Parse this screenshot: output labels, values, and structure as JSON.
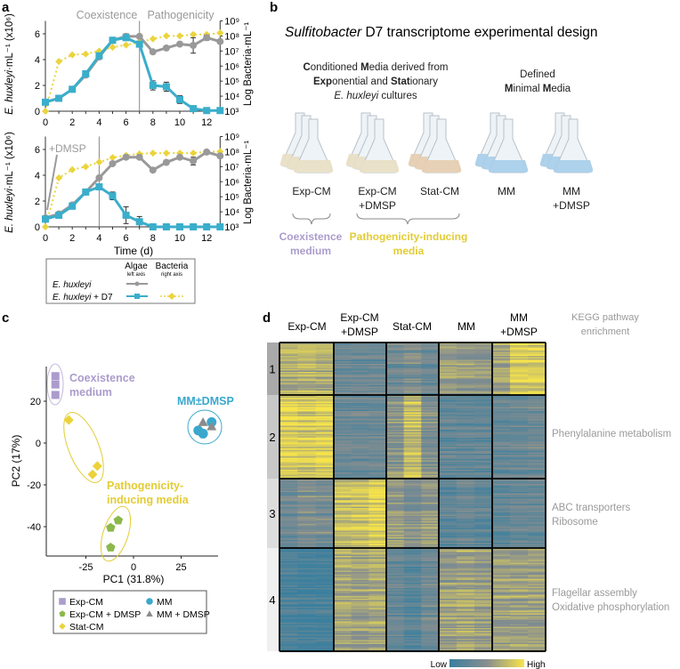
{
  "panel_labels": {
    "a": "a",
    "b": "b",
    "c": "c",
    "d": "d"
  },
  "colors": {
    "algae_gray": "#999999",
    "d7_blue": "#3aaecb",
    "bacteria_yellow": "#ebd43c",
    "coexistence_purple": "#ab9ccc",
    "pathogenicity_yellow": "#e3cc35",
    "mm_blue": "#3aa8cc",
    "exp_dmsp_green": "#8cb84c",
    "mm_dmsp_gray": "#8c8c8c",
    "heat_low": "#3b7f9e",
    "heat_mid": "#878e8f",
    "heat_high": "#f7e44a"
  },
  "panel_a": {
    "ylabel_left_italic": "E. huxleyi",
    "ylabel_left_rest": "·mL⁻¹ (x10⁶)",
    "ylabel_right": "Log Bacteria·mL⁻¹",
    "left_ticks": [
      "0",
      "2",
      "4",
      "6"
    ],
    "right_ticks": [
      "10³",
      "10⁴",
      "10⁵",
      "10⁶",
      "10⁷",
      "10⁸",
      "10⁹"
    ],
    "x_ticks": [
      "0",
      "2",
      "4",
      "6",
      "8",
      "10",
      "12"
    ],
    "legend": {
      "col_algae": "Algae",
      "col_algae_sub": "left axis",
      "col_bacteria": "Bacteria",
      "col_bacteria_sub": "right axis",
      "row1": "E. huxleyi",
      "row2_italic": "E. huxleyi",
      "row2_rest": " + D7"
    }
  },
  "chart_data": [
    {
      "type": "line",
      "panel": "a-top",
      "phase_left": "Coexistence",
      "phase_right": "Pathogenicity",
      "xlabel": "",
      "ylabel": "E. huxleyi·mL⁻¹ (x10⁶)",
      "y2label": "Log Bacteria·mL⁻¹",
      "x": [
        0,
        1,
        2,
        3,
        4,
        5,
        6,
        7,
        8,
        9,
        10,
        11,
        12,
        13
      ],
      "xlim": [
        0,
        13
      ],
      "ylim": [
        0,
        7
      ],
      "y2lim_log10": [
        3,
        9
      ],
      "vline_day": 7,
      "series": [
        {
          "name": "E. huxleyi",
          "axis": "left",
          "values": [
            0.7,
            1.0,
            1.7,
            2.8,
            4.2,
            5.5,
            5.8,
            5.8,
            4.6,
            4.9,
            5.2,
            5.1,
            5.7,
            5.4
          ],
          "errors": [
            0,
            0,
            0,
            0,
            0,
            0,
            0.2,
            0,
            0,
            0,
            0,
            0.6,
            0.2,
            0
          ]
        },
        {
          "name": "E. huxleyi + D7",
          "axis": "left",
          "values": [
            0.7,
            1.0,
            1.7,
            2.9,
            4.3,
            5.5,
            5.7,
            5.2,
            2.0,
            1.9,
            0.9,
            0.2,
            0.05,
            0.05
          ],
          "errors": [
            0,
            0,
            0,
            0,
            0,
            0,
            0,
            0,
            0.35,
            0.35,
            0.3,
            0,
            0,
            0
          ]
        },
        {
          "name": "E. huxleyi + D7 (Bacteria)",
          "axis": "right",
          "values_log10": [
            3.0,
            6.3,
            6.75,
            6.8,
            7.0,
            7.25,
            7.4,
            7.6,
            7.8,
            8.0,
            8.0,
            8.1,
            8.1,
            8.2
          ]
        }
      ]
    },
    {
      "type": "line",
      "panel": "a-bottom",
      "annotation": "+DMSP",
      "xlabel": "Time (d)",
      "ylabel": "E. huxleyi·mL⁻¹ (x10⁶)",
      "y2label": "Log Bacteria·mL⁻¹",
      "x": [
        0,
        1,
        2,
        3,
        4,
        5,
        6,
        7,
        8,
        9,
        10,
        11,
        12,
        13
      ],
      "xlim": [
        0,
        13
      ],
      "ylim": [
        0,
        7
      ],
      "y2lim_log10": [
        3,
        9
      ],
      "vline_day": 4,
      "series": [
        {
          "name": "E. huxleyi",
          "axis": "left",
          "values": [
            0.7,
            1.0,
            1.7,
            2.7,
            3.8,
            4.9,
            5.4,
            5.4,
            4.4,
            5.0,
            5.4,
            5.1,
            5.8,
            5.5
          ],
          "errors": [
            0,
            0,
            0,
            0,
            0,
            0,
            0,
            0,
            0,
            0,
            0,
            0.3,
            0,
            0
          ]
        },
        {
          "name": "E. huxleyi + D7",
          "axis": "left",
          "values": [
            0.6,
            0.9,
            1.6,
            2.7,
            3.1,
            2.4,
            0.9,
            0.4,
            0,
            0,
            0,
            0,
            0,
            0
          ],
          "errors": [
            0,
            0,
            0,
            0,
            0,
            0.3,
            0.65,
            0.4,
            0,
            0,
            0,
            0,
            0,
            0
          ]
        },
        {
          "name": "E. huxleyi + D7 (Bacteria)",
          "axis": "right",
          "values_log10": [
            3.0,
            6.25,
            6.8,
            7.0,
            7.3,
            7.6,
            7.75,
            7.85,
            7.9,
            7.9,
            7.9,
            7.9,
            8.0,
            8.0
          ]
        }
      ]
    },
    {
      "type": "scatter",
      "panel": "c",
      "xlabel": "PC1 (31.8%)",
      "ylabel": "PC2 (17%)",
      "xlim": [
        -45,
        45
      ],
      "ylim": [
        -55,
        36
      ],
      "x_ticks": [
        -25,
        0,
        25
      ],
      "y_ticks": [
        20,
        0,
        -20,
        -40
      ],
      "series": [
        {
          "name": "Exp-CM",
          "marker": "square",
          "points": [
            [
              -41,
              32
            ],
            [
              -41,
              28
            ],
            [
              -41,
              23
            ]
          ]
        },
        {
          "name": "Exp-CM + DMSP",
          "marker": "pentagon",
          "points": [
            [
              -8,
              -37
            ],
            [
              -12,
              -40.5
            ],
            [
              -12,
              -50
            ]
          ]
        },
        {
          "name": "Stat-CM",
          "marker": "diamond",
          "points": [
            [
              -34,
              11
            ],
            [
              -19,
              -11
            ],
            [
              -21.5,
              -15
            ]
          ]
        },
        {
          "name": "MM",
          "marker": "circle",
          "points": [
            [
              34,
              6
            ],
            [
              36.5,
              4.5
            ],
            [
              41,
              10
            ]
          ]
        },
        {
          "name": "MM + DMSP",
          "marker": "triangle",
          "points": [
            [
              36.5,
              10
            ],
            [
              41,
              8
            ]
          ]
        }
      ],
      "annotations": {
        "coexistence": [
          "Coexistence",
          "medium"
        ],
        "pathogenicity": [
          "Pathogenicity-",
          "inducing media"
        ],
        "mm": "MM±DMSP"
      }
    },
    {
      "type": "heatmap",
      "panel": "d",
      "columns": [
        "Exp-CM",
        "Exp-CM +DMSP",
        "Stat-CM",
        "MM",
        "MM +DMSP"
      ],
      "replicates_per_column": 3,
      "clusters": [
        "1",
        "2",
        "3",
        "4"
      ],
      "relative_level_0_to_1": [
        [
          [
            0.65,
            0.7,
            0.65
          ],
          [
            0.3,
            0.3,
            0.3
          ],
          [
            0.35,
            0.4,
            0.3
          ],
          [
            0.6,
            0.55,
            0.55
          ],
          [
            0.65,
            0.88,
            0.88
          ]
        ],
        [
          [
            0.9,
            0.85,
            0.9
          ],
          [
            0.3,
            0.3,
            0.3
          ],
          [
            0.5,
            0.78,
            0.45
          ],
          [
            0.25,
            0.25,
            0.25
          ],
          [
            0.3,
            0.3,
            0.35
          ]
        ],
        [
          [
            0.35,
            0.45,
            0.4
          ],
          [
            0.75,
            0.78,
            0.88
          ],
          [
            0.55,
            0.45,
            0.55
          ],
          [
            0.25,
            0.3,
            0.25
          ],
          [
            0.25,
            0.3,
            0.3
          ]
        ],
        [
          [
            0.1,
            0.05,
            0.05
          ],
          [
            0.65,
            0.6,
            0.65
          ],
          [
            0.3,
            0.2,
            0.35
          ],
          [
            0.6,
            0.65,
            0.6
          ],
          [
            0.6,
            0.6,
            0.6
          ]
        ]
      ],
      "kegg_title": [
        "KEGG pathway",
        "enrichment"
      ],
      "kegg_terms": [
        [],
        [
          "Phenylalanine metabolism"
        ],
        [
          "ABC transporters",
          "Ribosome"
        ],
        [
          "Flagellar assembly",
          "Oxidative phosphorylation"
        ]
      ],
      "scale_low": "Low",
      "scale_high": "High"
    }
  ],
  "panel_b": {
    "title_italic": "Sulfitobacter",
    "title_rest": " D7 transcriptome experimental design",
    "cm_lines": [
      [
        {
          "t": "C",
          "b": true
        },
        {
          "t": "onditioned "
        },
        {
          "t": "M",
          "b": true
        },
        {
          "t": "edia derived from"
        }
      ],
      [
        {
          "t": "Exp",
          "b": true
        },
        {
          "t": "onential and "
        },
        {
          "t": "Stat",
          "b": true
        },
        {
          "t": "ionary"
        }
      ],
      [
        {
          "t": "E. huxleyi",
          "i": true
        },
        {
          "t": " cultures"
        }
      ]
    ],
    "mm_lines": [
      [
        {
          "t": "Defined"
        }
      ],
      [
        {
          "t": "M",
          "b": true
        },
        {
          "t": "inimal "
        },
        {
          "t": "M",
          "b": true
        },
        {
          "t": "edia"
        }
      ]
    ],
    "flasks": [
      {
        "label": [
          "Exp-CM"
        ],
        "liquid": "#e9dfc6"
      },
      {
        "label": [
          "Exp-CM",
          "+DMSP"
        ],
        "liquid": "#e9dfc6"
      },
      {
        "label": [
          "Stat-CM"
        ],
        "liquid": "#e6cfb2"
      },
      {
        "label": [
          "MM"
        ],
        "liquid": "#aad0ea"
      },
      {
        "label": [
          "MM",
          "+DMSP"
        ],
        "liquid": "#aad0ea"
      }
    ],
    "group_coexistence": [
      "Coexistence",
      "medium"
    ],
    "group_pathogenicity": [
      "Pathogenicity-inducing",
      "media"
    ]
  },
  "panel_c_legend": [
    "Exp-CM",
    "Exp-CM + DMSP",
    "Stat-CM",
    "MM",
    "MM + DMSP"
  ]
}
